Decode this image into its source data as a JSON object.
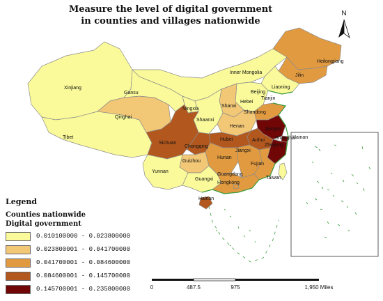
{
  "title": {
    "line1": "Measure the level of digital government",
    "line2": "in counties and villages nationwide"
  },
  "north_label": "N",
  "legend": {
    "heading": "Legend",
    "subtitle1": "Counties nationwide",
    "subtitle2": "Digital government",
    "classes": [
      {
        "label": "0.010100000 - 0.023800000",
        "color": "#fafa9a"
      },
      {
        "label": "0.023800001 - 0.041700000",
        "color": "#f2c776"
      },
      {
        "label": "0.041700001 - 0.084600000",
        "color": "#e29a41"
      },
      {
        "label": "0.084600001 - 0.145700000",
        "color": "#b2581e"
      },
      {
        "label": "0.145700001 - 0.235800000",
        "color": "#700606"
      }
    ]
  },
  "scale_bar": {
    "labels": [
      "0",
      "487.5",
      "975",
      "1,950 Miles"
    ]
  },
  "provinces": [
    {
      "name": "Xinjiang",
      "class": 0
    },
    {
      "name": "Tibet",
      "class": 0
    },
    {
      "name": "Qinghai",
      "class": 1
    },
    {
      "name": "Gansu",
      "class": 0
    },
    {
      "name": "Inner Mongolia",
      "class": 0
    },
    {
      "name": "Heilongjiang",
      "class": 2
    },
    {
      "name": "Jilin",
      "class": 2
    },
    {
      "name": "Liaoning",
      "class": 0
    },
    {
      "name": "Beijing",
      "class": 0
    },
    {
      "name": "Tianjin",
      "class": 0
    },
    {
      "name": "Hebei",
      "class": 0
    },
    {
      "name": "Shanxi",
      "class": 1
    },
    {
      "name": "Ningxia",
      "class": 0
    },
    {
      "name": "Shaanxi",
      "class": 0
    },
    {
      "name": "Shandong",
      "class": 2
    },
    {
      "name": "Henan",
      "class": 1
    },
    {
      "name": "Jiangsu",
      "class": 4
    },
    {
      "name": "Anhui",
      "class": 3
    },
    {
      "name": "Shanghai",
      "class": 4
    },
    {
      "name": "Zhejiang",
      "class": 4
    },
    {
      "name": "Hubei",
      "class": 3
    },
    {
      "name": "Sichuan",
      "class": 3
    },
    {
      "name": "Chongqing",
      "class": 3
    },
    {
      "name": "Hunan",
      "class": 2
    },
    {
      "name": "Jiangxi",
      "class": 2
    },
    {
      "name": "Fujian",
      "class": 2
    },
    {
      "name": "Guizhou",
      "class": 1
    },
    {
      "name": "Yunnan",
      "class": 0
    },
    {
      "name": "Guangxi",
      "class": 0
    },
    {
      "name": "Guangdong",
      "class": 2
    },
    {
      "name": "Hongkong",
      "class": 2
    },
    {
      "name": "Taiwan",
      "class": 0
    },
    {
      "name": "Hainan",
      "class": 3
    }
  ],
  "inset_label": "Hainan"
}
